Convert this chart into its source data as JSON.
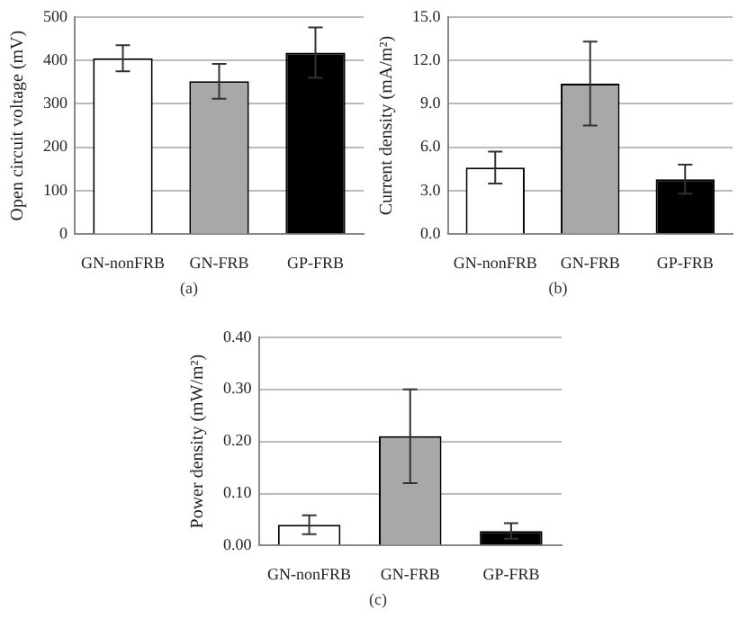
{
  "chart_data": [
    {
      "type": "bar",
      "ylabel": "Open circuit voltage (mV)",
      "categories": [
        "GN-nonFRB",
        "GN-FRB",
        "GP-FRB"
      ],
      "values": [
        405,
        352,
        418
      ],
      "errors": [
        30,
        40,
        58
      ],
      "colors": [
        "#ffffff",
        "#a8a8a8",
        "#000000"
      ],
      "ylim": [
        0,
        500
      ],
      "yticks": [
        0,
        100,
        200,
        300,
        400,
        500
      ],
      "grid": "y",
      "annotations": [
        "(a)"
      ]
    },
    {
      "type": "bar",
      "ylabel": "Current density (mA/m²)",
      "categories": [
        "GN-nonFRB",
        "GN-FRB",
        "GP-FRB"
      ],
      "values": [
        4.6,
        10.4,
        3.8
      ],
      "errors": [
        1.1,
        2.9,
        1.0
      ],
      "colors": [
        "#ffffff",
        "#a8a8a8",
        "#000000"
      ],
      "ylim": [
        0,
        15
      ],
      "yticks": [
        {
          "value": 0,
          "label": "0.0"
        },
        {
          "value": 3,
          "label": "3.0"
        },
        {
          "value": 6,
          "label": "6.0"
        },
        {
          "value": 9,
          "label": "9.0"
        },
        {
          "value": 12,
          "label": "12.0"
        },
        {
          "value": 15,
          "label": "15.0"
        }
      ],
      "grid": "y",
      "annotations": [
        "(b)"
      ]
    },
    {
      "type": "bar",
      "ylabel": "Power density (mW/m²)",
      "categories": [
        "GN-nonFRB",
        "GN-FRB",
        "GP-FRB"
      ],
      "values": [
        0.04,
        0.21,
        0.028
      ],
      "errors": [
        0.018,
        0.09,
        0.015
      ],
      "colors": [
        "#ffffff",
        "#a8a8a8",
        "#000000"
      ],
      "ylim": [
        0,
        0.4
      ],
      "yticks": [
        {
          "value": 0,
          "label": "0.00"
        },
        {
          "value": 0.1,
          "label": "0.10"
        },
        {
          "value": 0.2,
          "label": "0.20"
        },
        {
          "value": 0.3,
          "label": "0.30"
        },
        {
          "value": 0.4,
          "label": "0.40"
        }
      ],
      "grid": "y",
      "annotations": [
        "(c)"
      ]
    }
  ]
}
